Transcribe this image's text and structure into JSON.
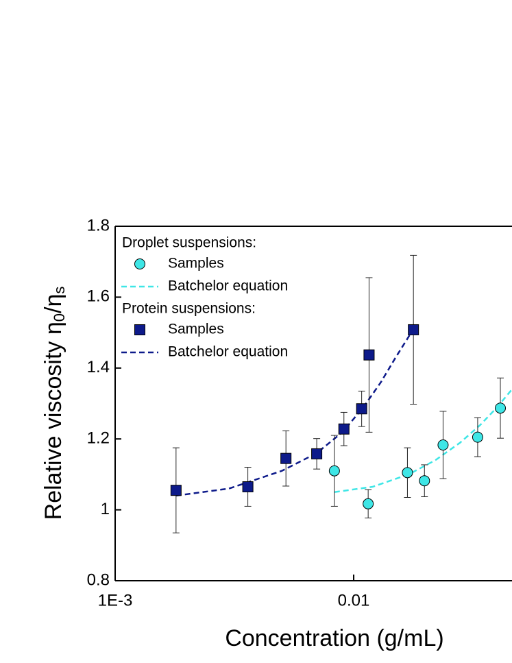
{
  "chart_data": {
    "type": "scatter",
    "x_label": "Concentration (g/mL)",
    "y_label": [
      "Relative viscosity  η",
      "0",
      "/η",
      "s"
    ],
    "xscale": "log",
    "xlim": [
      0.001,
      0.0461
    ],
    "ylim": [
      0.8,
      1.8
    ],
    "xticks": [
      {
        "value": 0.001,
        "label": "1E-3"
      },
      0.01
    ],
    "yticks": [
      0.8,
      1.0,
      1.2,
      1.4,
      1.6,
      1.8
    ],
    "series": [
      {
        "legend_group": "Droplet suspensions:",
        "name": "Samples",
        "kind": "scatter",
        "marker": "circle",
        "color": "#3ee6e6",
        "x": [
          0.0083,
          0.0115,
          0.0168,
          0.0198,
          0.0237,
          0.0331,
          0.0412
        ],
        "values": [
          1.11,
          1.017,
          1.105,
          1.082,
          1.183,
          1.205,
          1.287
        ],
        "errors": [
          0.1,
          0.04,
          0.07,
          0.045,
          0.095,
          0.055,
          0.085
        ]
      },
      {
        "name": "Batchelor equation",
        "kind": "line",
        "dashed": true,
        "color": "#3ee6e6",
        "x": [
          0.0083,
          0.012,
          0.017,
          0.022,
          0.028,
          0.034,
          0.04,
          0.0461
        ],
        "values": [
          1.05,
          1.065,
          1.1,
          1.14,
          1.19,
          1.24,
          1.29,
          1.34
        ]
      },
      {
        "legend_group": "Protein suspensions:",
        "name": "Samples",
        "kind": "scatter",
        "marker": "square",
        "color": "#0d1a8a",
        "x": [
          0.0018,
          0.0036,
          0.0052,
          0.007,
          0.0091,
          0.0108,
          0.0116,
          0.0178
        ],
        "values": [
          1.055,
          1.065,
          1.145,
          1.158,
          1.228,
          1.285,
          1.437,
          1.508
        ],
        "errors": [
          0.12,
          0.055,
          0.078,
          0.043,
          0.047,
          0.05,
          0.218,
          0.21
        ]
      },
      {
        "name": "Batchelor equation",
        "kind": "line",
        "dashed": true,
        "color": "#0d1a8a",
        "x": [
          0.0018,
          0.003,
          0.005,
          0.007,
          0.009,
          0.011,
          0.013,
          0.015,
          0.0178
        ],
        "values": [
          1.04,
          1.06,
          1.11,
          1.16,
          1.22,
          1.29,
          1.36,
          1.43,
          1.51
        ]
      }
    ]
  }
}
